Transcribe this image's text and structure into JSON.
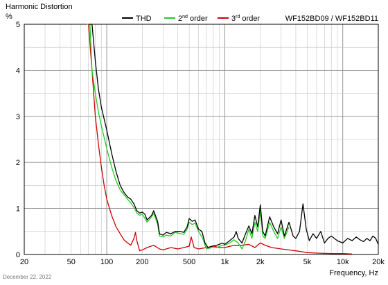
{
  "chart_data": {
    "type": "line",
    "title": "Harmonic Distortion",
    "ylabel": "%",
    "xlabel": "Frequency, Hz",
    "model": "WF152BD09 / WF152BD11",
    "date": "December 22, 2022",
    "x_scale": "log",
    "xlim": [
      20,
      20000
    ],
    "ylim": [
      0,
      5
    ],
    "grid": true,
    "legend_position": "top",
    "x_ticks": [
      20,
      50,
      100,
      200,
      500,
      1000,
      2000,
      5000,
      10000,
      20000
    ],
    "x_tick_labels": [
      "20",
      "50",
      "100",
      "200",
      "500",
      "1k",
      "2k",
      "5k",
      "10k",
      "20k"
    ],
    "y_ticks": [
      0,
      1,
      2,
      3,
      4,
      5
    ],
    "y_tick_labels": [
      "0",
      "1",
      "2",
      "3",
      "4",
      "5"
    ],
    "legend": [
      {
        "name": "THD",
        "sup": "",
        "suffix": "",
        "color": "#000000"
      },
      {
        "name": "2",
        "sup": "nd",
        "suffix": " order",
        "color": "#22cc22"
      },
      {
        "name": "3",
        "sup": "rd",
        "suffix": " order",
        "color": "#cc0000"
      }
    ],
    "series": [
      {
        "name": "THD",
        "color": "#000000",
        "points": [
          [
            70,
            5.0
          ],
          [
            75,
            5.0
          ],
          [
            80,
            4.2
          ],
          [
            85,
            3.6
          ],
          [
            90,
            3.2
          ],
          [
            100,
            2.7
          ],
          [
            110,
            2.2
          ],
          [
            120,
            1.8
          ],
          [
            130,
            1.5
          ],
          [
            140,
            1.35
          ],
          [
            150,
            1.25
          ],
          [
            160,
            1.2
          ],
          [
            170,
            1.1
          ],
          [
            180,
            0.95
          ],
          [
            190,
            0.9
          ],
          [
            200,
            0.92
          ],
          [
            210,
            0.88
          ],
          [
            220,
            0.75
          ],
          [
            240,
            0.85
          ],
          [
            250,
            0.95
          ],
          [
            270,
            0.72
          ],
          [
            280,
            0.45
          ],
          [
            300,
            0.42
          ],
          [
            320,
            0.48
          ],
          [
            350,
            0.45
          ],
          [
            380,
            0.5
          ],
          [
            420,
            0.5
          ],
          [
            450,
            0.48
          ],
          [
            480,
            0.6
          ],
          [
            500,
            0.78
          ],
          [
            530,
            0.72
          ],
          [
            560,
            0.75
          ],
          [
            600,
            0.55
          ],
          [
            640,
            0.5
          ],
          [
            680,
            0.25
          ],
          [
            720,
            0.15
          ],
          [
            780,
            0.18
          ],
          [
            850,
            0.2
          ],
          [
            900,
            0.22
          ],
          [
            950,
            0.25
          ],
          [
            1000,
            0.22
          ],
          [
            1100,
            0.3
          ],
          [
            1200,
            0.38
          ],
          [
            1250,
            0.5
          ],
          [
            1300,
            0.35
          ],
          [
            1400,
            0.25
          ],
          [
            1500,
            0.45
          ],
          [
            1600,
            0.62
          ],
          [
            1700,
            0.45
          ],
          [
            1800,
            0.85
          ],
          [
            1900,
            0.6
          ],
          [
            2000,
            1.08
          ],
          [
            2100,
            0.5
          ],
          [
            2200,
            0.4
          ],
          [
            2400,
            0.82
          ],
          [
            2600,
            0.6
          ],
          [
            2800,
            0.45
          ],
          [
            3000,
            0.75
          ],
          [
            3200,
            0.4
          ],
          [
            3500,
            0.7
          ],
          [
            3800,
            0.4
          ],
          [
            4000,
            0.35
          ],
          [
            4300,
            0.5
          ],
          [
            4600,
            1.1
          ],
          [
            4900,
            0.55
          ],
          [
            5200,
            0.3
          ],
          [
            5600,
            0.45
          ],
          [
            6000,
            0.35
          ],
          [
            6500,
            0.5
          ],
          [
            7000,
            0.25
          ],
          [
            7500,
            0.35
          ],
          [
            8000,
            0.4
          ],
          [
            9000,
            0.3
          ],
          [
            10000,
            0.25
          ],
          [
            11000,
            0.35
          ],
          [
            12000,
            0.3
          ],
          [
            13000,
            0.38
          ],
          [
            14000,
            0.32
          ],
          [
            15000,
            0.28
          ],
          [
            16000,
            0.35
          ],
          [
            17000,
            0.3
          ],
          [
            18000,
            0.4
          ],
          [
            19000,
            0.35
          ],
          [
            20000,
            0.22
          ]
        ]
      },
      {
        "name": "2nd order",
        "color": "#22cc22",
        "points": [
          [
            68,
            5.0
          ],
          [
            72,
            5.0
          ],
          [
            75,
            4.0
          ],
          [
            80,
            3.5
          ],
          [
            85,
            3.1
          ],
          [
            90,
            2.8
          ],
          [
            100,
            2.3
          ],
          [
            110,
            1.9
          ],
          [
            120,
            1.6
          ],
          [
            130,
            1.4
          ],
          [
            140,
            1.3
          ],
          [
            150,
            1.2
          ],
          [
            160,
            1.12
          ],
          [
            170,
            1.02
          ],
          [
            180,
            0.9
          ],
          [
            190,
            0.85
          ],
          [
            200,
            0.88
          ],
          [
            220,
            0.7
          ],
          [
            240,
            0.82
          ],
          [
            250,
            0.9
          ],
          [
            270,
            0.65
          ],
          [
            280,
            0.4
          ],
          [
            300,
            0.38
          ],
          [
            320,
            0.42
          ],
          [
            350,
            0.4
          ],
          [
            380,
            0.48
          ],
          [
            420,
            0.45
          ],
          [
            450,
            0.44
          ],
          [
            480,
            0.55
          ],
          [
            500,
            0.7
          ],
          [
            530,
            0.65
          ],
          [
            560,
            0.68
          ],
          [
            600,
            0.5
          ],
          [
            650,
            0.35
          ],
          [
            700,
            0.12
          ],
          [
            780,
            0.15
          ],
          [
            850,
            0.15
          ],
          [
            950,
            0.2
          ],
          [
            1000,
            0.2
          ],
          [
            1100,
            0.25
          ],
          [
            1200,
            0.32
          ],
          [
            1300,
            0.25
          ],
          [
            1400,
            0.12
          ],
          [
            1500,
            0.3
          ],
          [
            1600,
            0.55
          ],
          [
            1700,
            0.35
          ],
          [
            1800,
            0.7
          ],
          [
            1900,
            0.5
          ],
          [
            2000,
            0.95
          ],
          [
            2100,
            0.4
          ],
          [
            2200,
            0.35
          ],
          [
            2400,
            0.7
          ],
          [
            2600,
            0.5
          ],
          [
            2800,
            0.35
          ],
          [
            3000,
            0.6
          ],
          [
            3200,
            0.35
          ],
          [
            3500,
            0.6
          ]
        ]
      },
      {
        "name": "3rd order",
        "color": "#cc0000",
        "points": [
          [
            70,
            5.0
          ],
          [
            75,
            4.0
          ],
          [
            80,
            3.0
          ],
          [
            85,
            2.4
          ],
          [
            90,
            1.9
          ],
          [
            95,
            1.5
          ],
          [
            100,
            1.2
          ],
          [
            110,
            0.85
          ],
          [
            120,
            0.6
          ],
          [
            130,
            0.45
          ],
          [
            140,
            0.32
          ],
          [
            150,
            0.25
          ],
          [
            160,
            0.2
          ],
          [
            170,
            0.35
          ],
          [
            175,
            0.48
          ],
          [
            180,
            0.3
          ],
          [
            190,
            0.08
          ],
          [
            200,
            0.1
          ],
          [
            220,
            0.15
          ],
          [
            250,
            0.2
          ],
          [
            280,
            0.12
          ],
          [
            300,
            0.1
          ],
          [
            350,
            0.15
          ],
          [
            400,
            0.12
          ],
          [
            450,
            0.15
          ],
          [
            500,
            0.18
          ],
          [
            520,
            0.38
          ],
          [
            550,
            0.15
          ],
          [
            600,
            0.12
          ],
          [
            700,
            0.15
          ],
          [
            800,
            0.18
          ],
          [
            900,
            0.15
          ],
          [
            1000,
            0.15
          ],
          [
            1200,
            0.2
          ],
          [
            1400,
            0.2
          ],
          [
            1600,
            0.22
          ],
          [
            1800,
            0.15
          ],
          [
            2000,
            0.25
          ],
          [
            2200,
            0.2
          ],
          [
            2500,
            0.15
          ],
          [
            3000,
            0.12
          ],
          [
            3500,
            0.1
          ],
          [
            4000,
            0.08
          ],
          [
            4500,
            0.06
          ],
          [
            5000,
            0.04
          ],
          [
            6000,
            0.03
          ],
          [
            8000,
            0.02
          ],
          [
            10000,
            0.02
          ],
          [
            12000,
            0.01
          ]
        ]
      }
    ]
  }
}
